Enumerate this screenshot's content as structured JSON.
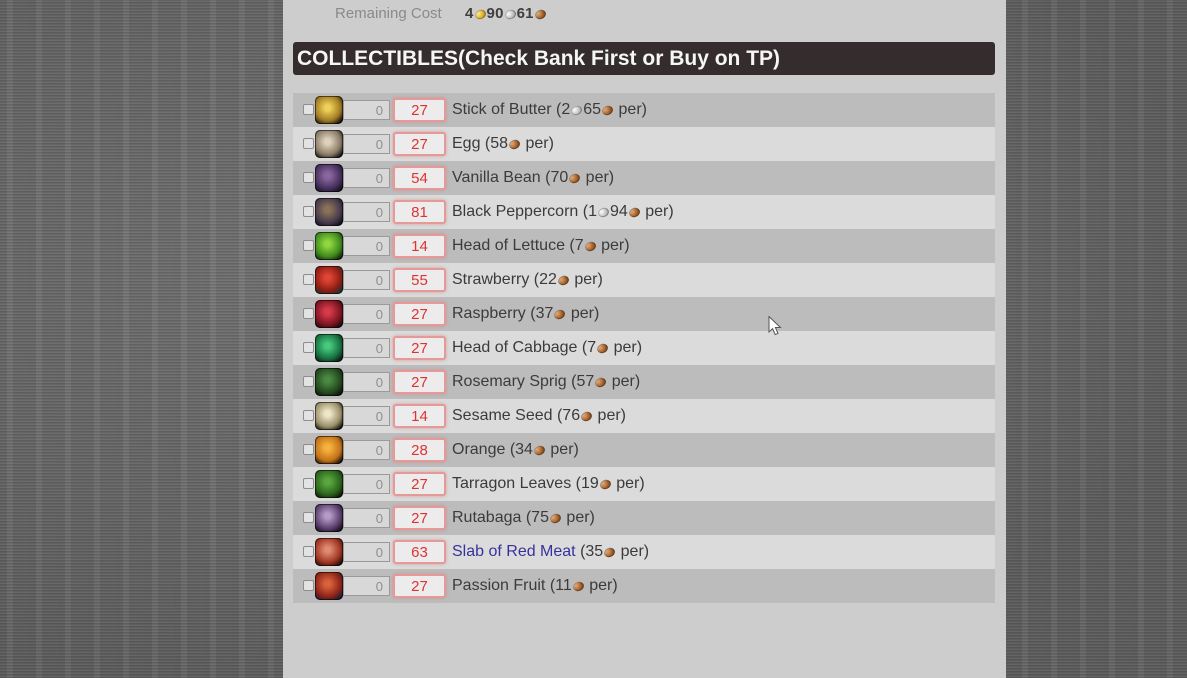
{
  "page": {
    "background_color": "#6e6e6e",
    "content_bg": "#cdcdcd",
    "row_dark": "#bcbcbc",
    "row_light": "#dbdbdb"
  },
  "summary": {
    "label": "Remaining Cost",
    "cost": [
      {
        "amount": "4",
        "coin": "gold"
      },
      {
        "amount": "90",
        "coin": "silver"
      },
      {
        "amount": "61",
        "coin": "copper"
      }
    ]
  },
  "section": {
    "title": "COLLECTIBLES(Check Bank First or Buy on TP)",
    "bg": "#352d2d",
    "fg": "#f6f6f6"
  },
  "price_format": {
    "open": " (",
    "close": " per)"
  },
  "coins": {
    "gold": {
      "light": "#f8e27c",
      "mid": "#d8a928",
      "dark": "#8e6a14"
    },
    "silver": {
      "light": "#f4f4f4",
      "mid": "#bdbdbd",
      "dark": "#7e7e7e"
    },
    "copper": {
      "light": "#d89a62",
      "mid": "#9a5a28",
      "dark": "#5e3414"
    }
  },
  "items": [
    {
      "name": "Stick of Butter",
      "owned": "0",
      "needed": "27",
      "link": false,
      "price": [
        {
          "amount": "2",
          "coin": "silver"
        },
        {
          "amount": "65",
          "coin": "copper"
        }
      ],
      "icon": {
        "name": "stick-of-butter-icon",
        "c1": "#efd058",
        "c2": "#a07a22",
        "bg": "#0e0e0e"
      }
    },
    {
      "name": "Egg",
      "owned": "0",
      "needed": "27",
      "link": false,
      "price": [
        {
          "amount": "58",
          "coin": "copper"
        }
      ],
      "icon": {
        "name": "egg-icon",
        "c1": "#ded2bc",
        "c2": "#8a7b66",
        "bg": "#121212"
      }
    },
    {
      "name": "Vanilla Bean",
      "owned": "0",
      "needed": "54",
      "link": false,
      "price": [
        {
          "amount": "70",
          "coin": "copper"
        }
      ],
      "icon": {
        "name": "vanilla-bean-icon",
        "c1": "#8a66a0",
        "c2": "#46305c",
        "bg": "#150f1a"
      }
    },
    {
      "name": "Black Peppercorn",
      "owned": "0",
      "needed": "81",
      "link": false,
      "price": [
        {
          "amount": "1",
          "coin": "silver"
        },
        {
          "amount": "94",
          "coin": "copper"
        }
      ],
      "icon": {
        "name": "black-peppercorn-icon",
        "c1": "#8a7258",
        "c2": "#463a4e",
        "bg": "#101014"
      }
    },
    {
      "name": "Head of Lettuce",
      "owned": "0",
      "needed": "14",
      "link": false,
      "price": [
        {
          "amount": "7",
          "coin": "copper"
        }
      ],
      "icon": {
        "name": "head-of-lettuce-icon",
        "c1": "#8fd63f",
        "c2": "#3f8a1e",
        "bg": "#14200c"
      }
    },
    {
      "name": "Strawberry",
      "owned": "0",
      "needed": "55",
      "link": false,
      "price": [
        {
          "amount": "22",
          "coin": "copper"
        }
      ],
      "icon": {
        "name": "strawberry-icon",
        "c1": "#e04434",
        "c2": "#8e1d14",
        "bg": "#17322e"
      }
    },
    {
      "name": "Raspberry",
      "owned": "0",
      "needed": "27",
      "link": false,
      "price": [
        {
          "amount": "37",
          "coin": "copper"
        }
      ],
      "icon": {
        "name": "raspberry-icon",
        "c1": "#d63a4a",
        "c2": "#7e1420",
        "bg": "#120c0c"
      }
    },
    {
      "name": "Head of Cabbage",
      "owned": "0",
      "needed": "27",
      "link": false,
      "price": [
        {
          "amount": "7",
          "coin": "copper"
        }
      ],
      "icon": {
        "name": "head-of-cabbage-icon",
        "c1": "#46c87e",
        "c2": "#17703f",
        "bg": "#0c1710"
      }
    },
    {
      "name": "Rosemary Sprig",
      "owned": "0",
      "needed": "27",
      "link": false,
      "price": [
        {
          "amount": "57",
          "coin": "copper"
        }
      ],
      "icon": {
        "name": "rosemary-sprig-icon",
        "c1": "#4a8a42",
        "c2": "#24481f",
        "bg": "#0c120a"
      }
    },
    {
      "name": "Sesame Seed",
      "owned": "0",
      "needed": "14",
      "link": false,
      "price": [
        {
          "amount": "76",
          "coin": "copper"
        }
      ],
      "icon": {
        "name": "sesame-seed-icon",
        "c1": "#efe6c8",
        "c2": "#9a8f6a",
        "bg": "#121208"
      }
    },
    {
      "name": "Orange",
      "owned": "0",
      "needed": "28",
      "link": false,
      "price": [
        {
          "amount": "34",
          "coin": "copper"
        }
      ],
      "icon": {
        "name": "orange-icon",
        "c1": "#f6b23c",
        "c2": "#c2711a",
        "bg": "#140f08"
      }
    },
    {
      "name": "Tarragon Leaves",
      "owned": "0",
      "needed": "27",
      "link": false,
      "price": [
        {
          "amount": "19",
          "coin": "copper"
        }
      ],
      "icon": {
        "name": "tarragon-leaves-icon",
        "c1": "#5aa63f",
        "c2": "#2a641c",
        "bg": "#0e140a"
      }
    },
    {
      "name": "Rutabaga",
      "owned": "0",
      "needed": "27",
      "link": false,
      "price": [
        {
          "amount": "75",
          "coin": "copper"
        }
      ],
      "icon": {
        "name": "rutabaga-icon",
        "c1": "#b49ac4",
        "c2": "#5a3f6e",
        "bg": "#120e16"
      }
    },
    {
      "name": "Slab of Red Meat",
      "owned": "0",
      "needed": "63",
      "link": true,
      "price": [
        {
          "amount": "35",
          "coin": "copper"
        }
      ],
      "icon": {
        "name": "slab-of-red-meat-icon",
        "c1": "#e08a72",
        "c2": "#9e3422",
        "bg": "#170e0a"
      }
    },
    {
      "name": "Passion Fruit",
      "owned": "0",
      "needed": "27",
      "link": false,
      "price": [
        {
          "amount": "11",
          "coin": "copper"
        }
      ],
      "icon": {
        "name": "passion-fruit-icon",
        "c1": "#d8623a",
        "c2": "#8e2418",
        "bg": "#141c34"
      }
    }
  ]
}
